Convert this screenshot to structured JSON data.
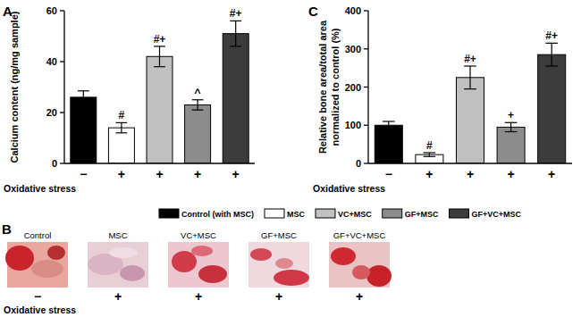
{
  "chart_data": [
    {
      "type": "bar",
      "title": "A",
      "ylabel": "Calcium content (ng/mg sample)",
      "xlabel": "Oxidative stress",
      "categories": [
        "−",
        "+",
        "+",
        "+",
        "+"
      ],
      "values": [
        26,
        14,
        42,
        23,
        51
      ],
      "errors": [
        2.5,
        2,
        4,
        2,
        5
      ],
      "significance": [
        null,
        "#",
        "#+",
        "^",
        "#+"
      ],
      "colors": [
        "#000000",
        "#ffffff",
        "#c0c0c0",
        "#8c8c8c",
        "#3c3c3c"
      ],
      "ylim": [
        0,
        60
      ],
      "yticks": [
        0,
        20,
        40,
        60
      ]
    },
    {
      "type": "bar",
      "title": "C",
      "ylabel": [
        "Relative bone area/total area",
        "normalized to control (%)"
      ],
      "xlabel": "Oxidative stress",
      "categories": [
        "−",
        "+",
        "+",
        "+",
        "+"
      ],
      "values": [
        100,
        23,
        225,
        95,
        285
      ],
      "errors": [
        10,
        5,
        30,
        12,
        30
      ],
      "significance": [
        null,
        "#",
        "#+",
        "+",
        "#+"
      ],
      "colors": [
        "#000000",
        "#ffffff",
        "#c0c0c0",
        "#8c8c8c",
        "#3c3c3c"
      ],
      "ylim": [
        0,
        400
      ],
      "yticks": [
        0,
        100,
        200,
        300,
        400
      ]
    }
  ],
  "shared_legend": {
    "names": [
      "Control (with MSC)",
      "MSC",
      "VC+MSC",
      "GF+MSC",
      "GF+VC+MSC"
    ]
  },
  "image_panel": {
    "label": "B",
    "titles": [
      "Control",
      "MSC",
      "VC+MSC",
      "GF+MSC",
      "GF+VC+MSC"
    ],
    "xlabel": "Oxidative stress",
    "conditions": [
      "−",
      "+",
      "+",
      "+",
      "+"
    ]
  }
}
